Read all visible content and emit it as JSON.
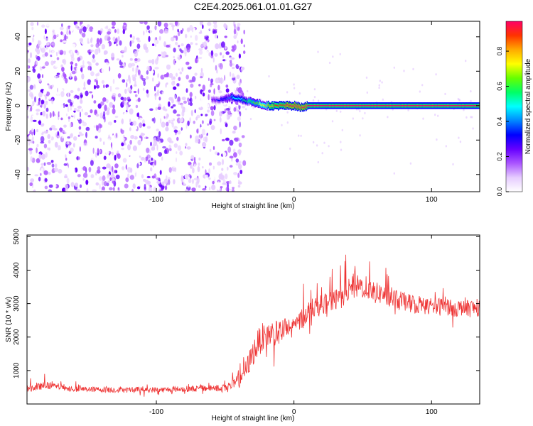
{
  "figure": {
    "title": "C2E4.2025.061.01.01.G27"
  },
  "chart_data": [
    {
      "type": "heatmap",
      "xlabel": "Height of straight line (km)",
      "ylabel": "Frequency (Hz)",
      "xlim": [
        -194,
        135
      ],
      "ylim": [
        -50,
        49
      ],
      "x_ticks": [
        -100,
        0,
        100
      ],
      "y_ticks": [
        -40,
        -20,
        0,
        20,
        40
      ],
      "colorbar": {
        "label": "Normalized spectral amplitude",
        "range": [
          0.0,
          0.97
        ],
        "ticks": [
          0.0,
          0.2,
          0.4,
          0.6,
          0.8
        ],
        "colors": [
          "#ffffff",
          "#e6ccff",
          "#aa55ff",
          "#6600ff",
          "#0000ff",
          "#0088ff",
          "#00ffff",
          "#00ff66",
          "#66ff00",
          "#ffff00",
          "#ffaa00",
          "#ff3300",
          "#ff0066"
        ]
      },
      "noise_region": {
        "x": [
          -194,
          -36
        ],
        "y": [
          -50,
          49
        ],
        "amplitude": [
          0.02,
          0.25
        ]
      },
      "ridge": {
        "x": [
          -60,
          -50,
          -45,
          -40,
          -35,
          -30,
          -25,
          -20,
          -15,
          -10,
          -5,
          0,
          5,
          10,
          20,
          40,
          60,
          80,
          100,
          120,
          135
        ],
        "y": [
          3,
          4,
          5,
          4,
          3,
          2,
          1,
          0,
          0,
          0,
          0,
          0,
          -1,
          0,
          0,
          0,
          0,
          0,
          0,
          0,
          0
        ],
        "amplitude": [
          0.25,
          0.35,
          0.45,
          0.5,
          0.55,
          0.6,
          0.7,
          0.8,
          0.85,
          0.9,
          0.95,
          0.97,
          0.95,
          0.93,
          0.93,
          0.93,
          0.93,
          0.93,
          0.93,
          0.93,
          0.93
        ]
      }
    },
    {
      "type": "line",
      "xlabel": "Height of straight line (km)",
      "ylabel": "SNR (10 * v/v)",
      "xlim": [
        -194,
        135
      ],
      "ylim": [
        0,
        5050
      ],
      "x_ticks": [
        -100,
        0,
        100
      ],
      "y_ticks": [
        1000,
        2000,
        3000,
        4000,
        5000
      ],
      "series": [
        {
          "color": "#ee3333",
          "x": [
            -194,
            -180,
            -170,
            -160,
            -150,
            -140,
            -130,
            -120,
            -110,
            -100,
            -90,
            -80,
            -70,
            -60,
            -50,
            -45,
            -40,
            -35,
            -30,
            -25,
            -20,
            -15,
            -10,
            -5,
            0,
            5,
            10,
            15,
            20,
            25,
            30,
            35,
            40,
            45,
            50,
            55,
            60,
            65,
            70,
            75,
            80,
            85,
            90,
            95,
            100,
            105,
            110,
            115,
            120,
            125,
            130,
            135
          ],
          "y": [
            450,
            560,
            520,
            450,
            440,
            430,
            420,
            420,
            440,
            420,
            430,
            450,
            460,
            480,
            520,
            560,
            700,
            1000,
            1500,
            1900,
            2100,
            2100,
            2150,
            2200,
            2300,
            2500,
            2800,
            2900,
            3000,
            3000,
            3100,
            3300,
            3400,
            3500,
            3500,
            3450,
            3300,
            3300,
            3200,
            3100,
            3050,
            3000,
            3000,
            2950,
            2900,
            2900,
            2950,
            2900,
            2850,
            2900,
            2850,
            2900
          ],
          "spread": [
            180,
            200,
            180,
            160,
            150,
            150,
            150,
            150,
            160,
            150,
            150,
            160,
            170,
            200,
            260,
            300,
            420,
            560,
            700,
            780,
            780,
            760,
            700,
            650,
            600,
            600,
            580,
            560,
            540,
            560,
            600,
            640,
            680,
            660,
            640,
            620,
            600,
            580,
            560,
            560,
            540,
            520,
            520,
            500,
            500,
            500,
            500,
            500,
            500,
            500,
            500,
            500
          ]
        }
      ]
    }
  ]
}
